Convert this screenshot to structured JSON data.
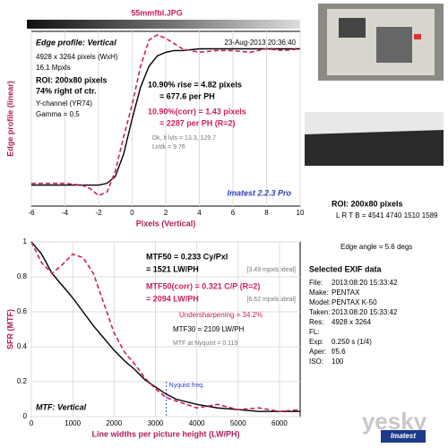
{
  "header": {
    "title": "55mmfbl.JPG"
  },
  "chart_data": [
    {
      "type": "line",
      "xlabel": "Pixels (Vertical)",
      "ylabel": "Edge profile (linear)",
      "x": [
        -6,
        -5,
        -4,
        -3,
        -2.5,
        -2,
        -1.5,
        -1,
        -0.5,
        0,
        0.5,
        1,
        1.5,
        2,
        2.5,
        3,
        4,
        5,
        6,
        7,
        8,
        9,
        10
      ],
      "series": [
        {
          "color": "#000000",
          "dash": false,
          "values": [
            0.12,
            0.12,
            0.12,
            0.12,
            0.12,
            0.12,
            0.13,
            0.17,
            0.3,
            0.5,
            0.68,
            0.8,
            0.86,
            0.88,
            0.89,
            0.89,
            0.9,
            0.9,
            0.9,
            0.9,
            0.9,
            0.9,
            0.9
          ]
        },
        {
          "color": "#cc1f5e",
          "dash": true,
          "values": [
            0.13,
            0.13,
            0.13,
            0.12,
            0.1,
            0.06,
            0.08,
            0.2,
            0.4,
            0.58,
            0.8,
            0.95,
            0.98,
            0.96,
            0.93,
            0.9,
            0.88,
            0.89,
            0.89,
            0.88,
            0.9,
            0.89,
            0.9
          ]
        }
      ],
      "xlim": [
        -6,
        10
      ],
      "ylim": [
        0,
        1
      ],
      "xticks": [
        -6,
        -4,
        -2,
        0,
        2,
        4,
        6,
        8,
        10
      ],
      "grid": true,
      "annotations": [
        "Edge profile: Vertical",
        "23-Aug-2013 20:36:40",
        "4928 x 3264 pixels (WxH)",
        "16.1 Mpxls",
        "ROI: 200x80 pixels",
        "74% right of ctr.",
        "Y-channel (YR74)",
        "Gamma = 0.5",
        "10.90% rise = 4.82 pixels",
        "= 677.6 per PH",
        "10.90%(corr) = 1.43 pixels",
        "= 2287 per PH  (R=2)",
        "Dk, lt lvls = 13.3, 129.7",
        "Lt/dk = 9.76",
        "Imatest 2.2.3 Pro"
      ]
    },
    {
      "type": "line",
      "xlabel": "Line widths per picture height (LW/PH)",
      "ylabel": "SFR (MTF)",
      "x": [
        0,
        250,
        500,
        750,
        1000,
        1250,
        1500,
        1750,
        2000,
        2250,
        2500,
        2750,
        3000,
        3250,
        3500,
        4000,
        4500,
        5000,
        5500,
        6000,
        6500
      ],
      "series": [
        {
          "color": "#000000",
          "dash": false,
          "values": [
            1,
            0.93,
            0.82,
            0.75,
            0.68,
            0.6,
            0.52,
            0.45,
            0.38,
            0.32,
            0.27,
            0.21,
            0.17,
            0.13,
            0.1,
            0.07,
            0.05,
            0.04,
            0.03,
            0.03,
            0.03
          ]
        },
        {
          "color": "#cc1f5e",
          "dash": true,
          "values": [
            1,
            0.88,
            0.82,
            0.87,
            0.93,
            0.91,
            0.82,
            0.65,
            0.48,
            0.37,
            0.3,
            0.22,
            0.16,
            0.11,
            0.09,
            0.05,
            0.07,
            0.04,
            0.05,
            0.03,
            0.04
          ]
        }
      ],
      "xlim": [
        0,
        6500
      ],
      "ylim": [
        0,
        1
      ],
      "xticks": [
        0,
        1000,
        2000,
        3000,
        4000,
        5000,
        6000
      ],
      "yticks": [
        0,
        0.2,
        0.4,
        0.6,
        0.8,
        1
      ],
      "grid": true,
      "nyquist": {
        "value": 3264,
        "label": "Nyquist freq."
      },
      "annotations": [
        "MTF50 = 0.233 Cy/Pxl",
        "= 1521 LW/PH",
        "[3.49 mpxls ideal]",
        "MTF50(corr) = 0.321 C/P  (R=2)",
        "= 2094 LW/PH",
        "[6.62 mpxls ideal]",
        "Undersharpening = 34.2%",
        "MTF30 = 2109 LW/PH",
        "MTF at Nyquist = 0.119",
        "MTF: Vertical"
      ]
    }
  ],
  "side": {
    "roi": "ROI: 200x80 pixels",
    "lrtb": "L R T B = 4541 4740 1510 1589",
    "edge_angle": "Edge angle = 5.6 degs",
    "exif_title": "Selected EXIF data",
    "exif": [
      [
        "File:",
        "2013:08:20 15:33:42"
      ],
      [
        "Make:",
        "PENTAX"
      ],
      [
        "Model:",
        "PENTAX K-50"
      ],
      [
        "Taken:",
        "2013:08:20 15:33:42"
      ],
      [
        "Res:",
        "4928 x 3264"
      ],
      [
        "FL:",
        ""
      ],
      [
        "Exp:",
        "0.250 s  (1/4)"
      ],
      [
        "Aper:",
        "f/5.6"
      ],
      [
        "ISO:",
        "100"
      ]
    ]
  },
  "watermark": {
    "site": "yesky",
    "logo": "Imatest"
  }
}
